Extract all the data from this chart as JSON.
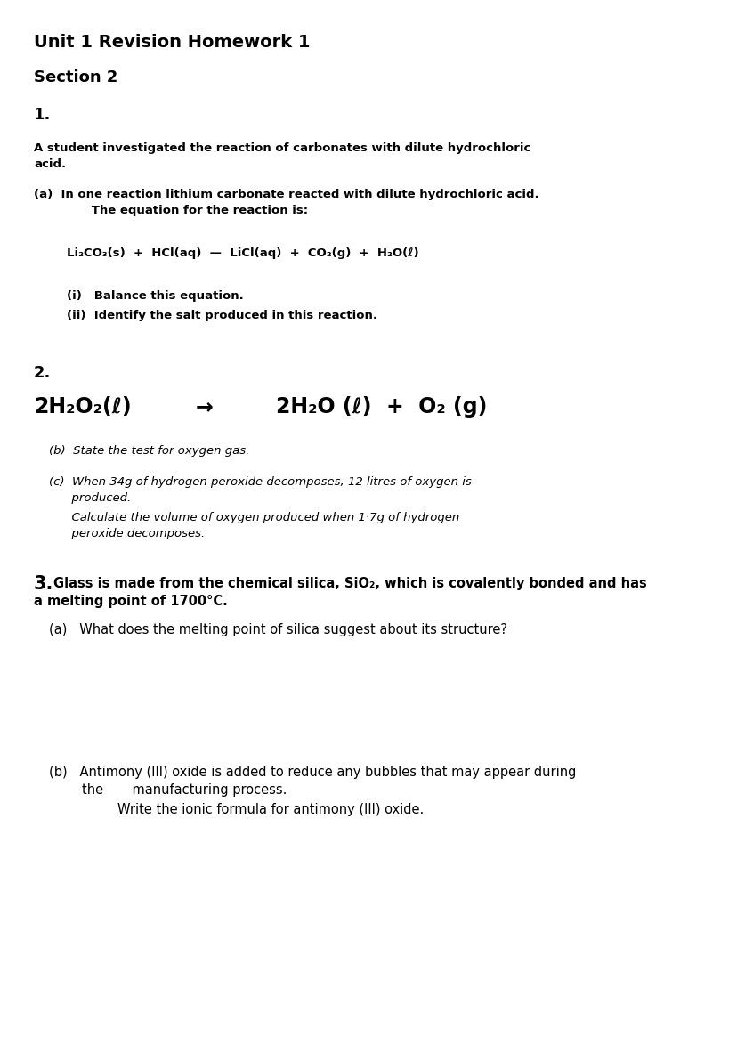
{
  "bg_color": "#ffffff",
  "title1": "Unit 1 Revision Homework 1",
  "title2": "Section 2",
  "q1_label": "1.",
  "q1_intro_line1": "A student investigated the reaction of carbonates with dilute hydrochloric",
  "q1_intro_line2": "acid.",
  "q1a_line1": "(a)  In one reaction lithium carbonate reacted with dilute hydrochloric acid.",
  "q1a_line2": "      The equation for the reaction is:",
  "q1_eq": "Li₂CO₃(s)  +  HCl(aq)  —  LiCl(aq)  +  CO₂(g)  +  H₂O(ℓ)",
  "q1i": "(i)   Balance this equation.",
  "q1ii": "(ii)  Identify the salt produced in this reaction.",
  "q2_label": "2.",
  "q2_eq_left": "2H₂O₂(ℓ)",
  "q2_arrow": "→",
  "q2_eq_right": "2H₂O (ℓ)  +  O₂ (g)",
  "q2b": "(b)  State the test for oxygen gas.",
  "q2c_l1": "(c)  When 34g of hydrogen peroxide decomposes, 12 litres of oxygen is",
  "q2c_l2": "      produced.",
  "q2c_l3": "      Calculate the volume of oxygen produced when 1·7g of hydrogen",
  "q2c_l4": "      peroxide decomposes.",
  "q3_label": "3.",
  "q3_intro_l1": "Glass is made from the chemical silica, SiO₂, which is covalently bonded and has",
  "q3_intro_l2": "a melting point of 1700°C.",
  "q3a": "(a)   What does the melting point of silica suggest about its structure?",
  "q3b_l1": "(b)   Antimony (III) oxide is added to reduce any bubbles that may appear during",
  "q3b_l2": "        the       manufacturing process.",
  "q3b_l3": "        Write the ionic formula for antimony (III) oxide."
}
